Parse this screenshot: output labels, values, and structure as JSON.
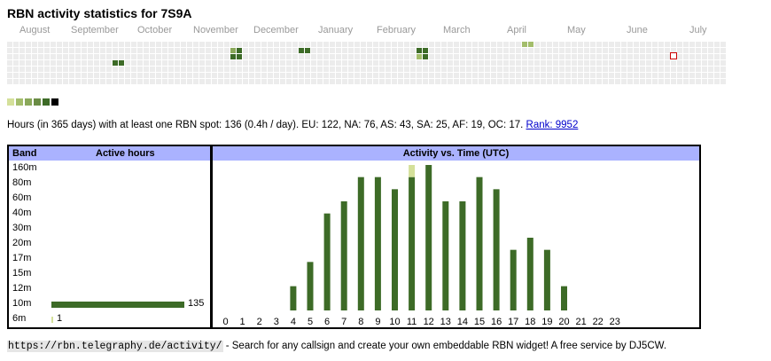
{
  "title": "RBN activity statistics for 7S9A",
  "months": [
    "August",
    "September",
    "October",
    "November",
    "December",
    "January",
    "February",
    "March",
    "April",
    "May",
    "June",
    "July"
  ],
  "legend_colors": [
    "#d4e09a",
    "#a3bd6b",
    "#8aa85a",
    "#6a8c45",
    "#3d6b27",
    "#000000"
  ],
  "summary": {
    "text": "Hours (in 365 days) with at least one RBN spot: 136 (0.4h / day). EU: 122, NA: 76, AS: 43, SA: 25, AF: 19, OC: 17.",
    "rank_label": "Rank: 9952"
  },
  "bands_table": {
    "header_band": "Band",
    "header_hours": "Active hours",
    "rows": [
      {
        "band": "160m",
        "hours": null
      },
      {
        "band": "80m",
        "hours": null
      },
      {
        "band": "60m",
        "hours": null
      },
      {
        "band": "40m",
        "hours": null
      },
      {
        "band": "30m",
        "hours": null
      },
      {
        "band": "20m",
        "hours": null
      },
      {
        "band": "17m",
        "hours": null
      },
      {
        "band": "15m",
        "hours": null
      },
      {
        "band": "12m",
        "hours": null
      },
      {
        "band": "10m",
        "hours": 135,
        "hours_label": "135"
      },
      {
        "band": "6m",
        "hours": 1,
        "hours_label": "1"
      }
    ]
  },
  "chart_data": {
    "type": "bar",
    "title": "Activity vs. Time (UTC)",
    "categories": [
      "0",
      "1",
      "2",
      "3",
      "4",
      "5",
      "6",
      "7",
      "8",
      "9",
      "10",
      "11",
      "12",
      "13",
      "14",
      "15",
      "16",
      "17",
      "18",
      "19",
      "20",
      "21",
      "22",
      "23"
    ],
    "series": [
      {
        "values": [
          0,
          0,
          0,
          0,
          2,
          4,
          8,
          9,
          11,
          11,
          10,
          11,
          12,
          9,
          9,
          11,
          10,
          5,
          6,
          5,
          2,
          0,
          0,
          0
        ],
        "color": "#3d6b27"
      },
      {
        "values": [
          0,
          0,
          0,
          0,
          0,
          0,
          0,
          0,
          0,
          0,
          0,
          1,
          0,
          0,
          0,
          0,
          0,
          0,
          0,
          0,
          0,
          0,
          0,
          0
        ],
        "color": "#d4e09a"
      }
    ],
    "ylim": [
      0,
      12
    ]
  },
  "footer": {
    "url": "https://rbn.telegraphy.de/activity/",
    "text": " - Search for any callsign and create your own embeddable RBN widget! A free service by DJ5CW."
  }
}
